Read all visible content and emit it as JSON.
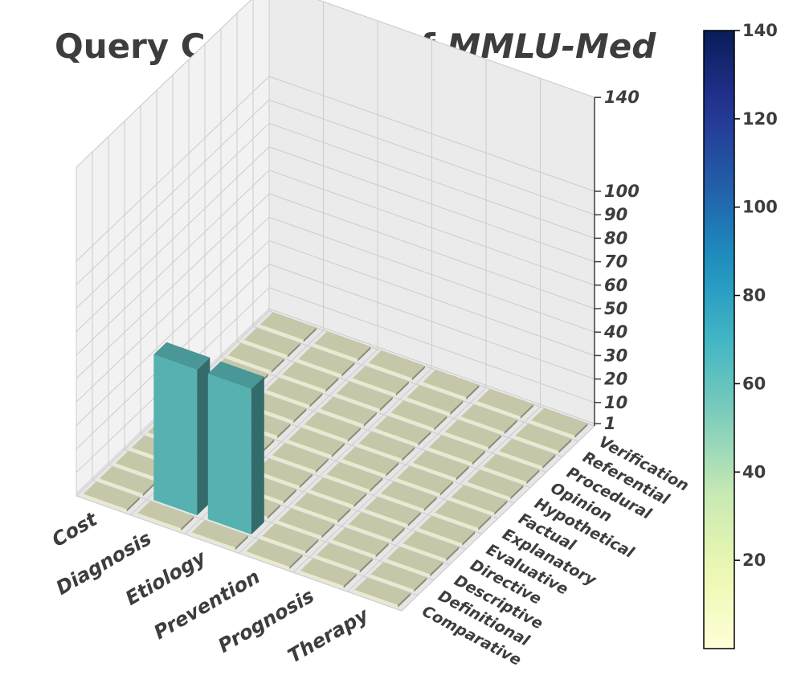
{
  "chart_data": {
    "type": "bar3d",
    "title_prefix": "Query Categories of ",
    "title_emphasis": "MMLU-Med",
    "x_categories": [
      "Cost",
      "Diagnosis",
      "Etiology",
      "Prevention",
      "Prognosis",
      "Therapy"
    ],
    "y_categories": [
      "Comparative",
      "Definitional",
      "Descriptive",
      "Directive",
      "Evaluative",
      "Explanatory",
      "Factual",
      "Hypothetical",
      "Opinion",
      "Procedural",
      "Referential",
      "Verification"
    ],
    "z_ticks": [
      1,
      10,
      20,
      30,
      40,
      50,
      60,
      70,
      80,
      90,
      100,
      140
    ],
    "z_tick_labels": [
      "1",
      "10",
      "20",
      "30",
      "40",
      "50",
      "60",
      "70",
      "80",
      "90",
      "100",
      "140"
    ],
    "zlim": [
      0,
      140
    ],
    "colorbar": {
      "range": [
        0,
        140
      ],
      "ticks": [
        20,
        40,
        60,
        80,
        100,
        120,
        140
      ],
      "tick_labels": [
        "20",
        "40",
        "60",
        "80",
        "100",
        "120",
        "140"
      ],
      "colormap": "YlGnBu"
    },
    "values": [
      [
        1,
        1,
        1,
        1,
        1,
        1,
        1,
        1,
        1,
        1,
        1,
        1
      ],
      [
        1,
        62,
        1,
        1,
        1,
        1,
        1,
        1,
        1,
        1,
        1,
        1
      ],
      [
        1,
        62,
        1,
        1,
        1,
        1,
        1,
        1,
        1,
        1,
        1,
        1
      ],
      [
        1,
        1,
        1,
        1,
        1,
        1,
        1,
        1,
        1,
        1,
        1,
        1
      ],
      [
        1,
        1,
        1,
        1,
        1,
        1,
        1,
        1,
        1,
        1,
        1,
        1
      ],
      [
        1,
        1,
        1,
        1,
        1,
        1,
        1,
        1,
        1,
        1,
        1,
        1
      ]
    ]
  }
}
